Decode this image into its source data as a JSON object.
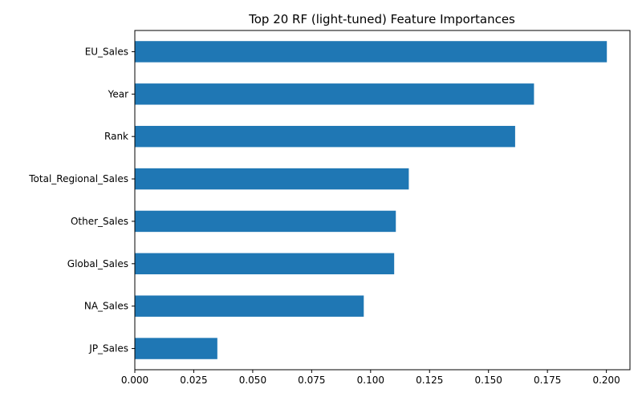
{
  "chart_data": {
    "type": "bar",
    "orientation": "horizontal",
    "title": "Top 20 RF (light-tuned) Feature Importances",
    "xlabel": "",
    "ylabel": "",
    "categories": [
      "EU_Sales",
      "Year",
      "Rank",
      "Total_Regional_Sales",
      "Other_Sales",
      "Global_Sales",
      "NA_Sales",
      "JP_Sales"
    ],
    "values": [
      0.2002,
      0.1693,
      0.1613,
      0.1162,
      0.1107,
      0.11,
      0.0971,
      0.035
    ],
    "xlim": [
      0,
      0.21
    ],
    "xticks": [
      "0.000",
      "0.025",
      "0.050",
      "0.075",
      "0.100",
      "0.125",
      "0.150",
      "0.175",
      "0.200"
    ],
    "grid": false,
    "bar_color": "#1f77b4"
  }
}
